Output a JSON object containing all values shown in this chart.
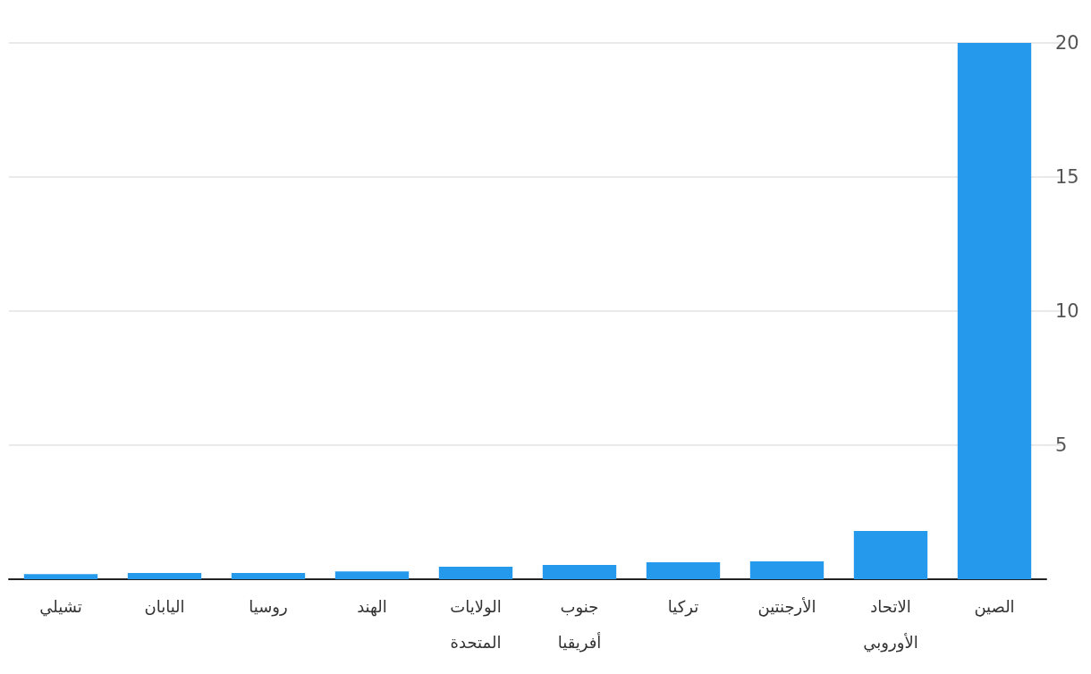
{
  "chart_data": {
    "type": "bar",
    "categories": [
      "تشيلي",
      "اليابان",
      "روسيا",
      "الهند",
      "الولايات المتحدة",
      "جنوب أفريقيا",
      "تركيا",
      "الأرجنتين",
      "الاتحاد الأوروبي",
      "الصين"
    ],
    "values": [
      0.19,
      0.23,
      0.23,
      0.29,
      0.47,
      0.53,
      0.63,
      0.67,
      1.8,
      20
    ],
    "color": "#259aed",
    "ylim": [
      0,
      20
    ],
    "yticks": [
      5,
      10,
      15,
      20
    ],
    "grid": "y"
  }
}
